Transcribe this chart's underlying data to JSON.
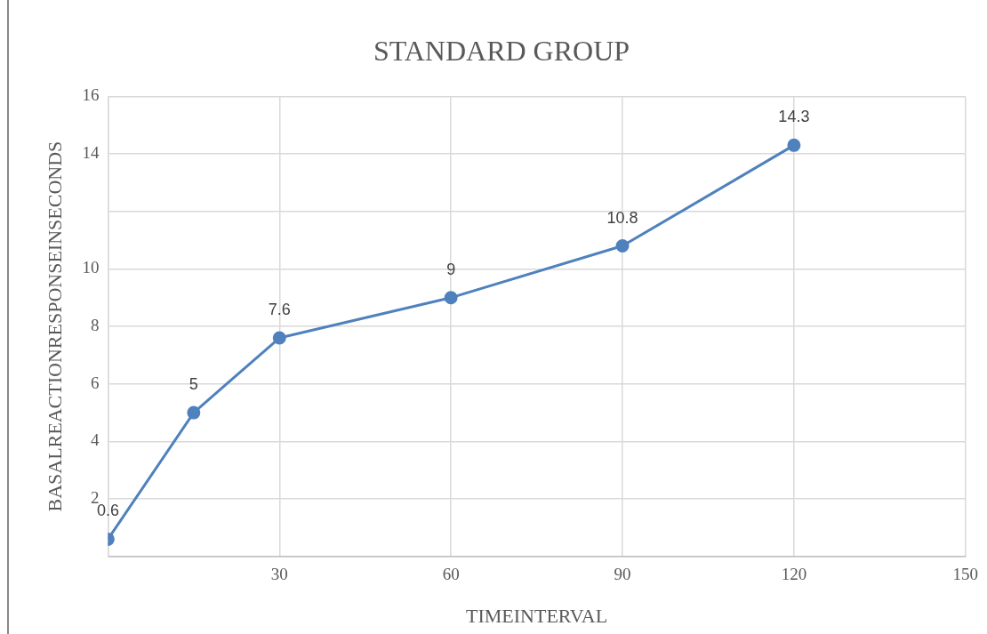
{
  "chart_data": {
    "type": "line",
    "title": "STANDARD GROUP",
    "xlabel": "TIMEINTERVAL",
    "ylabel": "BASALREACTIONRESPONSEINSECONDS",
    "x": [
      0,
      15,
      30,
      60,
      90,
      120
    ],
    "series": [
      {
        "color": "#4f81bd",
        "values": [
          0.6,
          5,
          7.6,
          9,
          10.8,
          14.3
        ]
      }
    ],
    "xlim": [
      0,
      150
    ],
    "xticks": [
      {
        "value": 0,
        "label": null
      },
      30,
      60,
      90,
      120,
      150
    ],
    "ylim": [
      0,
      16
    ],
    "yticks": [
      {
        "value": 0,
        "label": null
      },
      2,
      4,
      6,
      8,
      10,
      {
        "value": 12,
        "label": null
      },
      14,
      16
    ],
    "grid": true,
    "marker": "circle",
    "line_style": "solid",
    "data_labels": true,
    "legend": false
  }
}
